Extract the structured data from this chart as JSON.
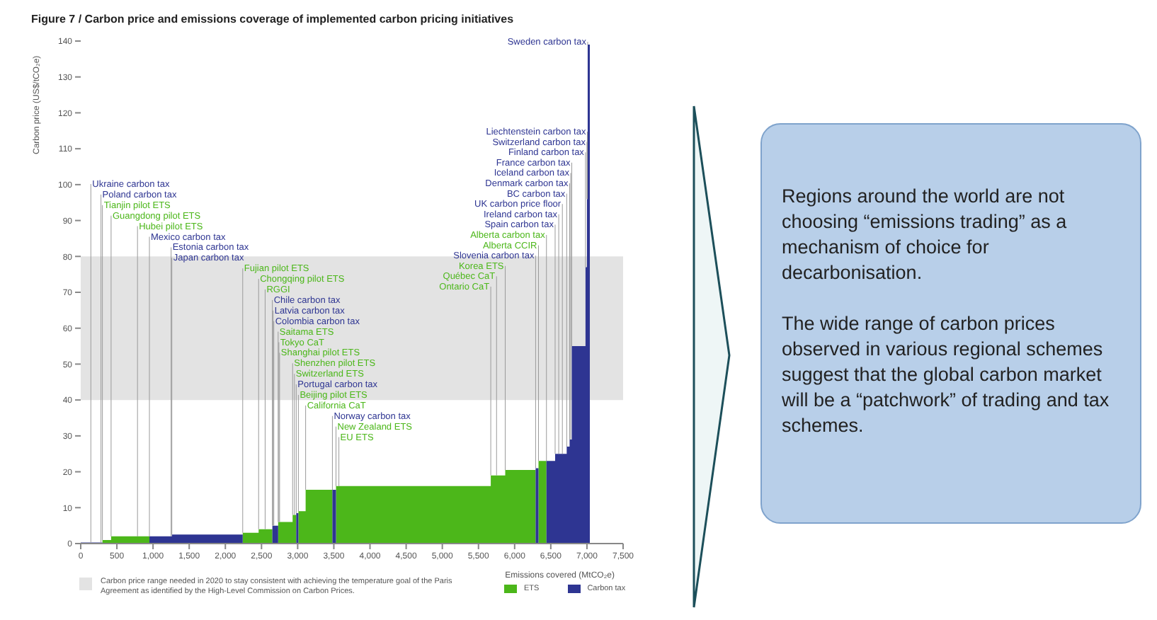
{
  "chart_data": [
    {
      "type": "area",
      "title": "Figure 7 / Carbon price and emissions coverage of implemented carbon pricing initiatives",
      "xlabel": "Emissions covered (MtCO₂e)",
      "ylabel": "Carbon price (US$/tCO₂e)",
      "legend": "bottom",
      "xlim": [
        0,
        7500
      ],
      "xticks": [
        0,
        500,
        {
          "value": 1000,
          "label": "1,000"
        },
        {
          "value": 1500,
          "label": "1,500"
        },
        {
          "value": 2000,
          "label": "2,000"
        },
        {
          "value": 2500,
          "label": "2,500"
        },
        {
          "value": 3000,
          "label": "3,000"
        },
        {
          "value": 3500,
          "label": "3,500"
        },
        {
          "value": 4000,
          "label": "4,000"
        },
        {
          "value": 4500,
          "label": "4,500"
        },
        {
          "value": 5000,
          "label": "5,000"
        },
        {
          "value": 5500,
          "label": "5,500"
        },
        {
          "value": 6000,
          "label": "6,000"
        },
        {
          "value": 6500,
          "label": "6,500"
        },
        {
          "value": 7000,
          "label": "7,000"
        },
        {
          "value": 7500,
          "label": "7,500"
        }
      ],
      "ylim": [
        0,
        140
      ],
      "yticks": [
        0,
        10,
        20,
        30,
        40,
        50,
        60,
        70,
        80,
        90,
        100,
        110,
        120,
        130,
        140
      ],
      "bands": [
        {
          "axis": "y",
          "from": 40,
          "to": 80,
          "color": "#e3e3e3",
          "label": "Carbon price range needed in 2020 to stay consistent with achieving the temperature goal of the Paris Agreement as identified by the High-Level Commission on Carbon Prices."
        }
      ],
      "series": [
        {
          "name": "ETS",
          "color": "#4cb71a",
          "x": [
            300,
            300,
            420,
            420,
            950,
            950,
            2240,
            2240,
            2460,
            2460,
            2650,
            2650,
            2730,
            2730,
            2930,
            2930,
            2980,
            2980,
            3010,
            3010,
            3110,
            3110,
            3480,
            3480,
            3530,
            3530,
            5670,
            5670,
            5870,
            5870,
            6290,
            6290,
            6330,
            6330,
            6440,
            6440
          ],
          "values": [
            0,
            1,
            1,
            2,
            2,
            0,
            0,
            3,
            3,
            4,
            4,
            0,
            0,
            6,
            6,
            8,
            8,
            0,
            0,
            9,
            9,
            15,
            15,
            0,
            0,
            16,
            16,
            19,
            19,
            20.5,
            20.5,
            0,
            0,
            23,
            23,
            0
          ]
        },
        {
          "name": "Carbon tax",
          "color": "#2e3592",
          "x": [
            0,
            300,
            300,
            950,
            950,
            1260,
            1260,
            2240,
            2240,
            2650,
            2650,
            2730,
            2730,
            2980,
            2980,
            3010,
            3010,
            3480,
            3480,
            3530,
            3530,
            6290,
            6290,
            6330,
            6330,
            6440,
            6440,
            6560,
            6560,
            6720,
            6720,
            6760,
            6760,
            6790,
            6790,
            6980,
            6980,
            7000,
            7000,
            7010,
            7010,
            7040,
            7040
          ],
          "values": [
            0.3,
            0.3,
            0,
            0,
            2,
            2,
            2.5,
            2.5,
            0,
            0,
            5,
            5,
            0,
            0,
            8.5,
            8.5,
            0,
            0,
            15,
            15,
            0,
            0,
            21,
            21,
            0,
            0,
            23,
            23,
            25,
            25,
            27,
            27,
            29,
            29,
            55,
            55,
            77,
            77,
            96,
            96,
            139,
            139,
            0
          ]
        }
      ],
      "annotations": [
        {
          "text": "Ukraine carbon tax",
          "x": 140,
          "y": 0.3
        },
        {
          "text": "Poland carbon tax",
          "x": 280,
          "y": 0.3
        },
        {
          "text": "Tianjin pilot ETS",
          "x": 300,
          "y": 1
        },
        {
          "text": "Guangdong pilot ETS",
          "x": 420,
          "y": 2
        },
        {
          "text": "Hubei pilot ETS",
          "x": 785,
          "y": 2
        },
        {
          "text": "Mexico carbon tax",
          "x": 950,
          "y": 2
        },
        {
          "text": "Estonia carbon tax",
          "x": 1250,
          "y": 2
        },
        {
          "text": "Japan carbon tax",
          "x": 1260,
          "y": 2.5
        },
        {
          "text": "Fujian pilot ETS",
          "x": 2240,
          "y": 3
        },
        {
          "text": "Chongqing pilot ETS",
          "x": 2460,
          "y": 4
        },
        {
          "text": "RGGI",
          "x": 2550,
          "y": 4
        },
        {
          "text": "Chile carbon tax",
          "x": 2650,
          "y": 5
        },
        {
          "text": "Latvia carbon tax",
          "x": 2660,
          "y": 5
        },
        {
          "text": "Colombia carbon tax",
          "x": 2670,
          "y": 5
        },
        {
          "text": "Saitama ETS",
          "x": 2730,
          "y": 6
        },
        {
          "text": "Tokyo CaT",
          "x": 2740,
          "y": 6
        },
        {
          "text": "Shanghai pilot ETS",
          "x": 2750,
          "y": 6
        },
        {
          "text": "Shenzhen pilot ETS",
          "x": 2930,
          "y": 8
        },
        {
          "text": "Switzerland ETS",
          "x": 2955,
          "y": 8
        },
        {
          "text": "Portugal carbon tax",
          "x": 2980,
          "y": 8.5
        },
        {
          "text": "Beijing pilot ETS",
          "x": 3010,
          "y": 9
        },
        {
          "text": "California CaT",
          "x": 3110,
          "y": 15
        },
        {
          "text": "Norway carbon tax",
          "x": 3480,
          "y": 15
        },
        {
          "text": "New Zealand ETS",
          "x": 3530,
          "y": 16
        },
        {
          "text": "EU ETS",
          "x": 3570,
          "y": 16
        },
        {
          "text": "Sweden carbon tax",
          "x": 7010,
          "y": 139
        },
        {
          "text": "Liechtenstein carbon tax",
          "x": 7005,
          "y": 96
        },
        {
          "text": "Switzerland carbon tax",
          "x": 7000,
          "y": 96
        },
        {
          "text": "Finland carbon tax",
          "x": 6980,
          "y": 77
        },
        {
          "text": "France carbon tax",
          "x": 6790,
          "y": 55
        },
        {
          "text": "Iceland carbon tax",
          "x": 6775,
          "y": 29
        },
        {
          "text": "Denmark carbon tax",
          "x": 6760,
          "y": 29
        },
        {
          "text": "BC carbon tax",
          "x": 6720,
          "y": 27
        },
        {
          "text": "UK carbon price floor",
          "x": 6660,
          "y": 25
        },
        {
          "text": "Ireland carbon tax",
          "x": 6610,
          "y": 25
        },
        {
          "text": "Spain carbon tax",
          "x": 6560,
          "y": 25
        },
        {
          "text": "Alberta carbon tax",
          "x": 6440,
          "y": 23
        },
        {
          "text": "Alberta CCIR",
          "x": 6330,
          "y": 23
        },
        {
          "text": "Slovenia carbon tax",
          "x": 6290,
          "y": 21
        },
        {
          "text": "Korea ETS",
          "x": 5870,
          "y": 20.5
        },
        {
          "text": "Québec CaT",
          "x": 5750,
          "y": 19
        },
        {
          "text": "Ontario CaT",
          "x": 5670,
          "y": 19
        }
      ]
    },
    {
      "type": "other",
      "annotations": [
        "Regions around the world are not choosing “emissions trading” as a mechanism of choice for decarbonisation.",
        "The wide range of carbon prices observed in various regional schemes suggest that the global carbon market will be a “patchwork” of trading and tax schemes."
      ]
    }
  ]
}
